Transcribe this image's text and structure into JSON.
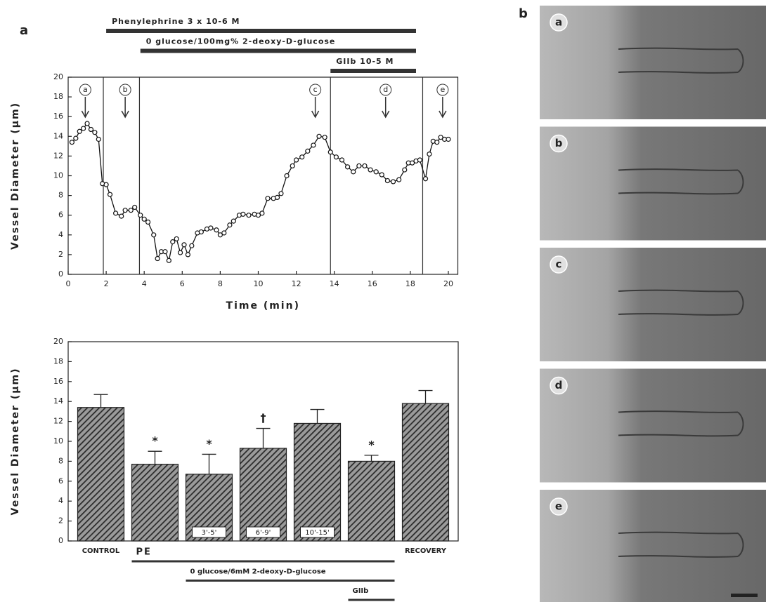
{
  "panel_labels": [
    "a",
    "b"
  ],
  "chart_data": [
    {
      "type": "line",
      "x_label": "Time (min)",
      "y_label": "Vessel Diameter (μm)",
      "xlim": [
        0,
        20.5
      ],
      "xticks": [
        0,
        2,
        4,
        6,
        8,
        10,
        12,
        14,
        16,
        18,
        20
      ],
      "ylim": [
        0,
        20
      ],
      "yticks": [
        0,
        2,
        4,
        6,
        8,
        10,
        12,
        14,
        16,
        18,
        20
      ],
      "color": "#111111",
      "x": [
        0.2,
        0.4,
        0.6,
        0.8,
        1.0,
        1.2,
        1.4,
        1.6,
        1.8,
        2.0,
        2.2,
        2.5,
        2.8,
        3.0,
        3.3,
        3.5,
        3.8,
        4.0,
        4.2,
        4.5,
        4.7,
        4.9,
        5.1,
        5.3,
        5.5,
        5.7,
        5.9,
        6.1,
        6.3,
        6.5,
        6.8,
        7.0,
        7.3,
        7.5,
        7.8,
        8.0,
        8.2,
        8.5,
        8.7,
        9.0,
        9.2,
        9.5,
        9.8,
        10.0,
        10.2,
        10.5,
        10.8,
        11.0,
        11.2,
        11.5,
        11.8,
        12.0,
        12.3,
        12.6,
        12.9,
        13.2,
        13.5,
        13.8,
        14.1,
        14.4,
        14.7,
        15.0,
        15.3,
        15.6,
        15.9,
        16.2,
        16.5,
        16.8,
        17.1,
        17.4,
        17.7,
        17.9,
        18.1,
        18.3,
        18.5,
        18.8,
        19.0,
        19.2,
        19.4,
        19.6,
        19.8,
        20.0
      ],
      "values": [
        13.4,
        13.8,
        14.5,
        14.8,
        15.3,
        14.7,
        14.4,
        13.7,
        9.2,
        9.1,
        8.1,
        6.2,
        5.9,
        6.5,
        6.5,
        6.8,
        6.0,
        5.6,
        5.3,
        4.0,
        1.6,
        2.3,
        2.3,
        1.4,
        3.3,
        3.6,
        2.2,
        3.0,
        2.0,
        2.9,
        4.2,
        4.3,
        4.6,
        4.7,
        4.5,
        4.0,
        4.2,
        5.0,
        5.4,
        6.0,
        6.1,
        6.0,
        6.1,
        6.0,
        6.2,
        7.7,
        7.7,
        7.8,
        8.2,
        10.0,
        11.0,
        11.6,
        11.9,
        12.5,
        13.1,
        14.0,
        13.9,
        12.4,
        11.9,
        11.6,
        10.9,
        10.4,
        11.0,
        11.0,
        10.6,
        10.4,
        10.1,
        9.5,
        9.4,
        9.6,
        10.6,
        11.3,
        11.3,
        11.5,
        11.6,
        9.7,
        12.2,
        13.5,
        13.4,
        13.9,
        13.7,
        13.7
      ],
      "phase_lines": [
        1.85,
        3.75,
        13.8,
        18.65
      ],
      "arrows": [
        {
          "label": "a",
          "x": 0.9
        },
        {
          "label": "b",
          "x": 3.0
        },
        {
          "label": "c",
          "x": 13.0
        },
        {
          "label": "d",
          "x": 16.7
        },
        {
          "label": "e",
          "x": 19.7
        }
      ],
      "treatments": [
        {
          "label": "Phenylephrine 3 x 10-6 M",
          "start": 2.0,
          "end": 18.3
        },
        {
          "label": "0 glucose/100mg% 2-deoxy-D-glucose",
          "start": 3.8,
          "end": 18.3
        },
        {
          "label": "GIIb 10-5 M",
          "start": 13.8,
          "end": 18.3
        }
      ]
    },
    {
      "type": "bar",
      "y_label": "Vessel Diameter (μm)",
      "ylim": [
        0,
        20
      ],
      "yticks": [
        0,
        2,
        4,
        6,
        8,
        10,
        12,
        14,
        16,
        18,
        20
      ],
      "color": "#2a2a2a",
      "categories": [
        "CONTROL",
        null,
        "3'-5'",
        "6'-9'",
        "10'-15'",
        null,
        "RECOVERY"
      ],
      "values": [
        13.4,
        7.7,
        6.7,
        9.3,
        11.8,
        8.0,
        13.8
      ],
      "errors": [
        1.3,
        1.3,
        2.0,
        2.0,
        1.4,
        0.6,
        1.3
      ],
      "markers": [
        null,
        "*",
        "*",
        "†",
        null,
        "*",
        null
      ],
      "treatments": [
        {
          "label": "PE",
          "from": 1,
          "to": 5
        },
        {
          "label": "0 glucose/6mM 2-deoxy-D-glucose",
          "from": 2,
          "to": 5
        },
        {
          "label": "GIIb",
          "from": 5,
          "to": 5
        }
      ]
    }
  ],
  "micrographs": [
    "a",
    "b",
    "c",
    "d",
    "e"
  ]
}
